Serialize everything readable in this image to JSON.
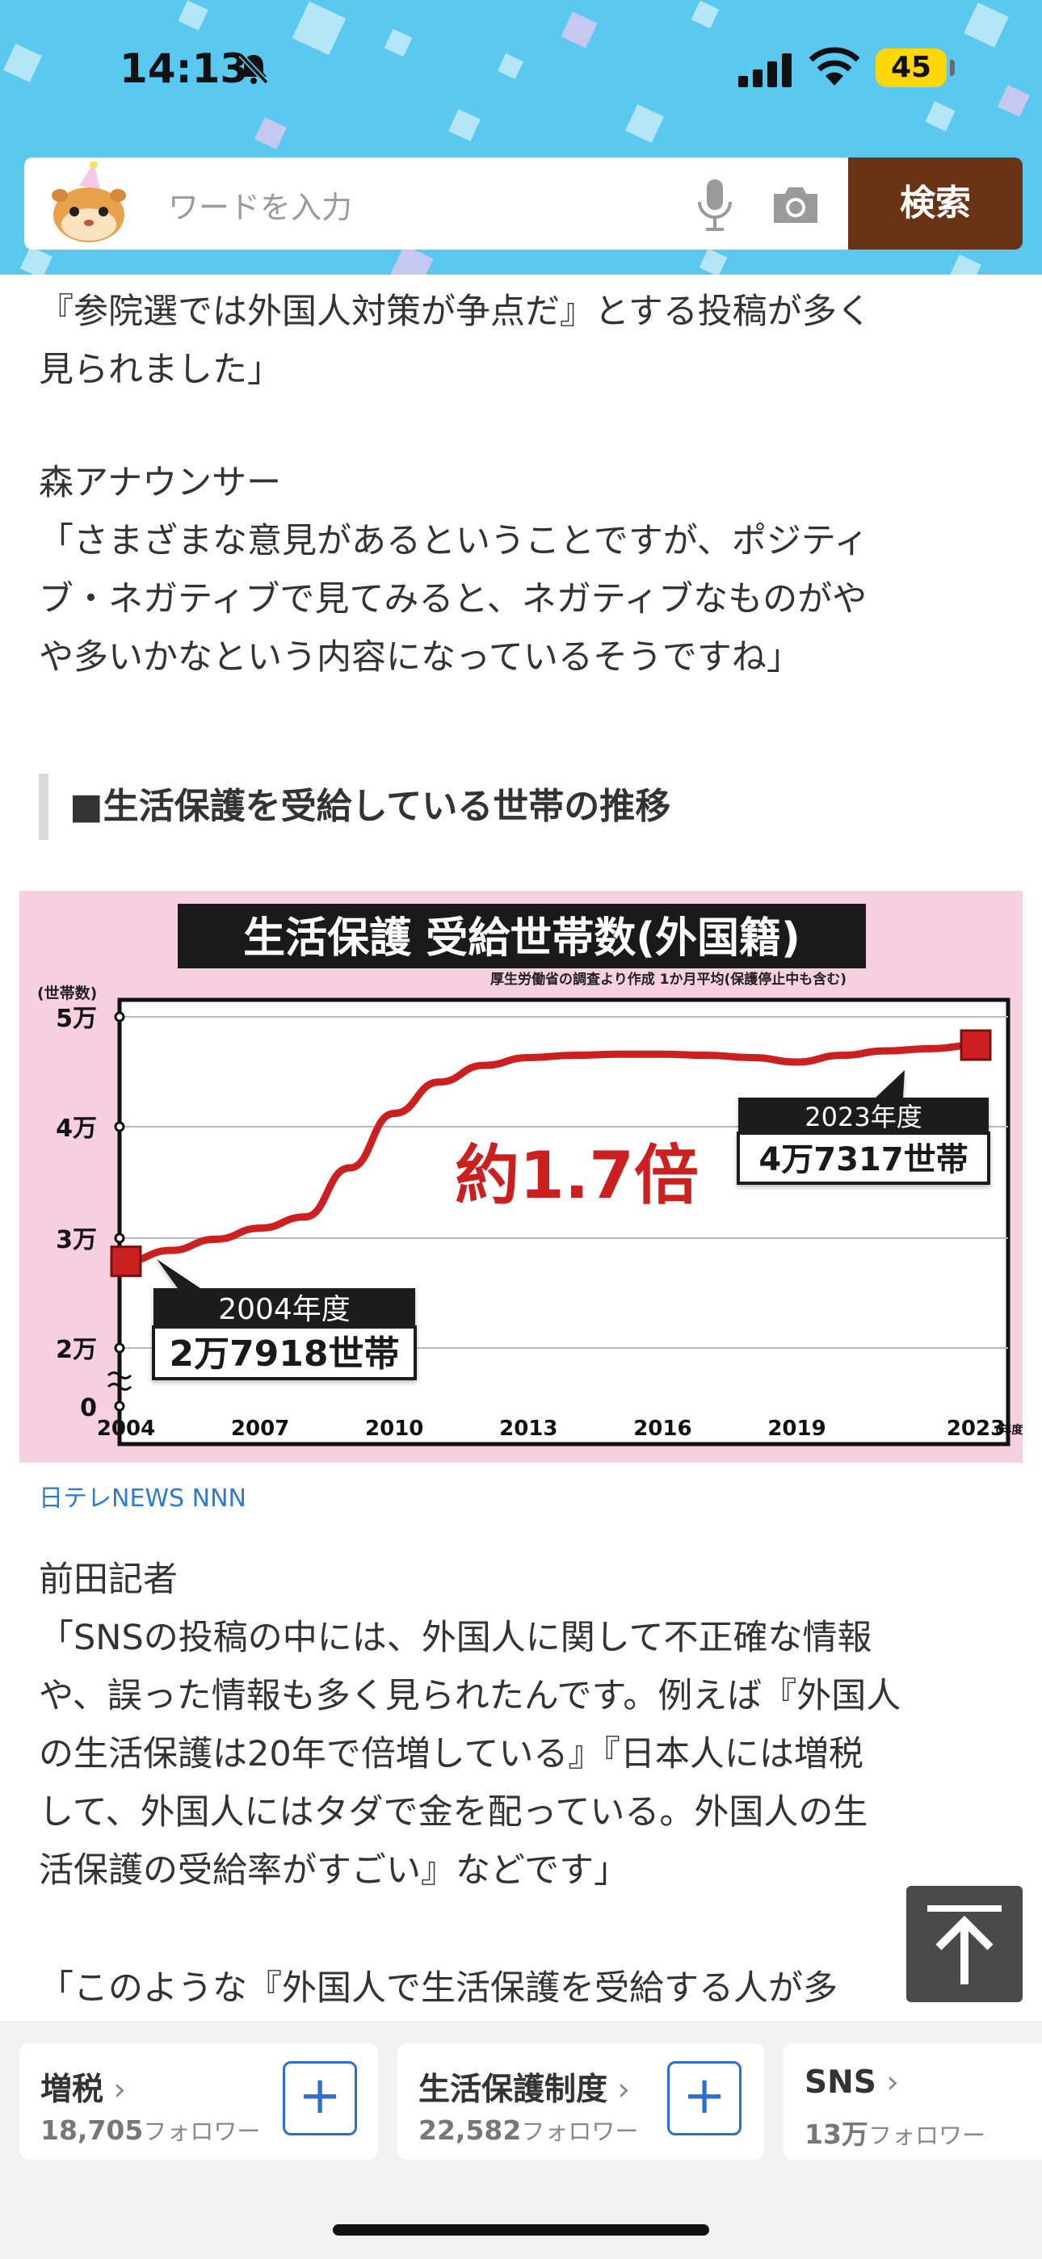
{
  "status_bar": {
    "time": "14:13",
    "battery": "45"
  },
  "search": {
    "placeholder": "ワードを入力",
    "button_label": "検索"
  },
  "article": {
    "para_quote_end_1": "『参院選では外国人対策が争点だ』とする投稿が多く",
    "para_quote_end_2": "見られました」",
    "speaker_1": "森アナウンサー",
    "quote_1_line_1": "「さまざまな意見があるということですが、ポジティ",
    "quote_1_line_2": "ブ・ネガティブで見てみると、ネガティブなものがや",
    "quote_1_line_3": "や多いかなという内容になっているそうですね」",
    "section_heading": "■生活保護を受給している世帯の推移",
    "image_source": "日テレNEWS NNN",
    "speaker_2": "前田記者",
    "quote_2_line_1": "「SNSの投稿の中には、外国人に関して不正確な情報",
    "quote_2_line_2": "や、誤った情報も多く見られたんです。例えば『外国人",
    "quote_2_line_3": "の生活保護は20年で倍増している』『日本人には増税",
    "quote_2_line_4": "して、外国人にはタダで金を配っている。外国人の生",
    "quote_2_line_5": "活保護の受給率がすごい』などです」",
    "quote_3_line_1": "「このような『外国人で生活保護を受給する人が多"
  },
  "chart_data": {
    "type": "line",
    "title": "生活保護 受給世帯数(外国籍)",
    "subtitle": "厚生労働省の調査より作成 1か月平均(保護停止中も含む)",
    "ylabel": "(世帯数)",
    "x_tick_labels": [
      "2004",
      "2007",
      "2010",
      "2013",
      "2016",
      "2019",
      "2023"
    ],
    "x_unit": "(年度)",
    "y_tick_labels": [
      "5万",
      "4万",
      "3万",
      "2万",
      "0"
    ],
    "ylim": [
      0,
      50000
    ],
    "y_axis_break": true,
    "series": [
      {
        "x": [
          2004,
          2005,
          2006,
          2007,
          2008,
          2009,
          2010,
          2011,
          2012,
          2013,
          2014,
          2015,
          2016,
          2017,
          2018,
          2019,
          2020,
          2021,
          2022,
          2023
        ],
        "values": [
          27918,
          28900,
          29900,
          30900,
          31900,
          36300,
          41200,
          44000,
          45500,
          46200,
          46400,
          46500,
          46500,
          46400,
          46200,
          45800,
          46400,
          46800,
          47000,
          47317
        ],
        "color": "#cc1f1f"
      }
    ],
    "annotations": [
      {
        "year": "2004年度",
        "value": "2万7918世帯"
      },
      {
        "year": "2023年度",
        "value": "4万7317世帯"
      },
      {
        "text": "約1.7倍"
      }
    ],
    "grid": true
  },
  "topics": [
    {
      "name": "増税",
      "count": "18,705",
      "unit": "フォロワー"
    },
    {
      "name": "生活保護制度",
      "count": "22,582",
      "unit": "フォロワー"
    },
    {
      "name": "SNS",
      "count": "13万",
      "unit": "フォロワー"
    }
  ],
  "icons": {
    "bell": "bell-slash-icon",
    "signal": "cellular-signal-icon",
    "wifi": "wifi-icon",
    "mic": "microphone-icon",
    "camera": "camera-icon",
    "top": "arrow-up-icon",
    "plus": "plus-icon"
  }
}
